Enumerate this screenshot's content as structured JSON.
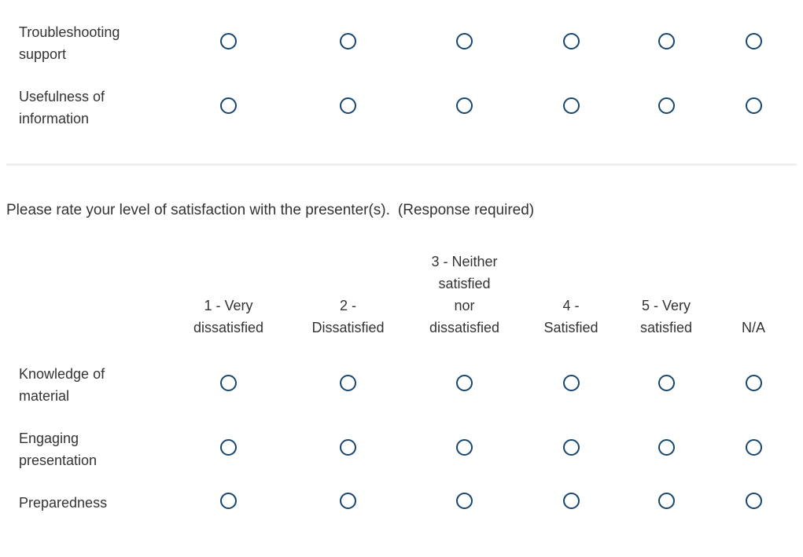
{
  "colors": {
    "radio_outline": "#17466e",
    "text": "#333333",
    "divider": "#efefef",
    "background": "#ffffff"
  },
  "question": {
    "text": "Please rate your level of satisfaction with the presenter(s).",
    "required_note": "(Response required)"
  },
  "matrix_top": {
    "options_per_row": 6,
    "rows": [
      {
        "label": "Troubleshooting\nsupport"
      },
      {
        "label": "Usefulness of\ninformation"
      }
    ],
    "selection_state": "all unselected"
  },
  "matrix_presenters": {
    "columns": [
      {
        "label": "1 - Very\ndissatisfied"
      },
      {
        "label": "2 -\nDissatisfied"
      },
      {
        "label": "3 - Neither\nsatisfied\nnor\ndissatisfied"
      },
      {
        "label": "4 -\nSatisfied"
      },
      {
        "label": "5 - Very\nsatisfied"
      },
      {
        "label": "N/A"
      }
    ],
    "rows": [
      {
        "label": "Knowledge of\nmaterial"
      },
      {
        "label": "Engaging\npresentation"
      },
      {
        "label": "Preparedness"
      }
    ],
    "selection_state": "all unselected"
  }
}
